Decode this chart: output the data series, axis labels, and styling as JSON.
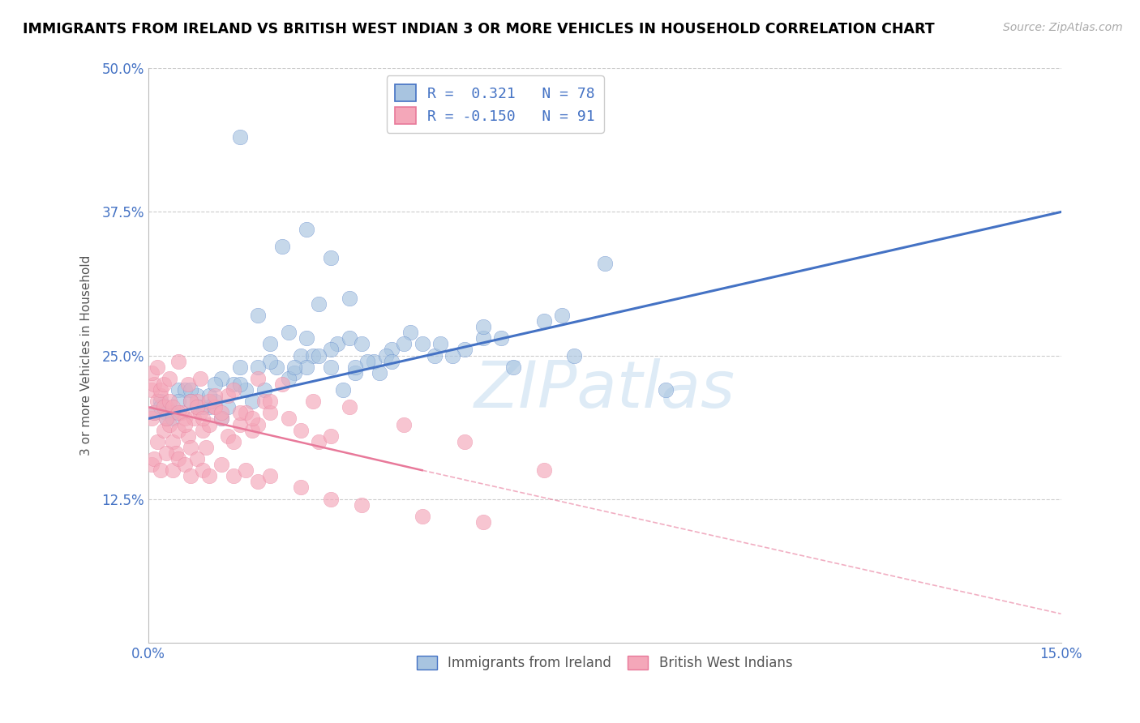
{
  "title": "IMMIGRANTS FROM IRELAND VS BRITISH WEST INDIAN 3 OR MORE VEHICLES IN HOUSEHOLD CORRELATION CHART",
  "source": "Source: ZipAtlas.com",
  "xlabel_blue": "Immigrants from Ireland",
  "xlabel_pink": "British West Indians",
  "ylabel": "3 or more Vehicles in Household",
  "xlim": [
    0.0,
    15.0
  ],
  "ylim": [
    0.0,
    50.0
  ],
  "yticks": [
    0.0,
    12.5,
    25.0,
    37.5,
    50.0
  ],
  "ytick_labels": [
    "",
    "12.5%",
    "25.0%",
    "37.5%",
    "50.0%"
  ],
  "blue_R": 0.321,
  "blue_N": 78,
  "pink_R": -0.15,
  "pink_N": 91,
  "blue_color": "#a8c4e0",
  "pink_color": "#f4a7b9",
  "blue_line_color": "#4472c4",
  "pink_line_color": "#e8799a",
  "watermark": "ZIPatlas",
  "blue_line_x0": 0.0,
  "blue_line_y0": 19.5,
  "blue_line_x1": 15.0,
  "blue_line_y1": 37.5,
  "pink_solid_x0": 0.0,
  "pink_solid_y0": 20.5,
  "pink_solid_x1": 4.5,
  "pink_solid_y1": 15.0,
  "pink_dash_x0": 4.5,
  "pink_dash_y0": 15.0,
  "pink_dash_x1": 15.0,
  "pink_dash_y1": 2.5,
  "blue_scatter_x": [
    1.5,
    2.2,
    2.6,
    3.0,
    3.3,
    0.3,
    0.5,
    0.8,
    1.0,
    1.2,
    1.5,
    1.8,
    2.0,
    2.3,
    2.5,
    2.8,
    3.1,
    3.4,
    3.7,
    4.0,
    4.3,
    4.7,
    5.5,
    7.5,
    0.2,
    0.4,
    0.6,
    0.9,
    1.1,
    1.4,
    1.7,
    2.1,
    2.4,
    2.7,
    3.0,
    3.2,
    3.6,
    3.9,
    4.5,
    5.2,
    6.0,
    0.1,
    0.3,
    0.7,
    1.0,
    1.3,
    1.6,
    2.0,
    2.3,
    2.6,
    3.0,
    3.4,
    3.8,
    4.2,
    5.0,
    5.8,
    6.5,
    7.0,
    8.5,
    0.2,
    0.5,
    0.8,
    1.2,
    1.5,
    1.9,
    2.4,
    2.8,
    3.3,
    4.0,
    4.8,
    5.5,
    6.8,
    0.4,
    0.7,
    1.1,
    1.8,
    2.6,
    3.5
  ],
  "blue_scatter_y": [
    44.0,
    34.5,
    36.0,
    33.5,
    30.0,
    20.0,
    22.0,
    21.5,
    20.5,
    19.5,
    24.0,
    28.5,
    26.0,
    27.0,
    25.0,
    29.5,
    26.0,
    23.5,
    24.5,
    25.5,
    27.0,
    25.0,
    26.5,
    33.0,
    21.0,
    20.0,
    22.0,
    20.5,
    21.0,
    22.5,
    21.0,
    24.0,
    23.5,
    25.0,
    24.0,
    22.0,
    24.5,
    25.0,
    26.0,
    25.5,
    24.0,
    20.0,
    19.5,
    22.0,
    21.5,
    20.5,
    22.0,
    24.5,
    23.0,
    24.0,
    25.5,
    24.0,
    23.5,
    26.0,
    25.0,
    26.5,
    28.0,
    25.0,
    22.0,
    20.5,
    21.0,
    20.5,
    23.0,
    22.5,
    22.0,
    24.0,
    25.0,
    26.5,
    24.5,
    26.0,
    27.5,
    28.5,
    19.5,
    21.0,
    22.5,
    24.0,
    26.5,
    26.0
  ],
  "pink_scatter_x": [
    0.05,
    0.1,
    0.15,
    0.2,
    0.25,
    0.3,
    0.35,
    0.4,
    0.45,
    0.5,
    0.55,
    0.6,
    0.65,
    0.7,
    0.75,
    0.8,
    0.85,
    0.9,
    0.95,
    1.0,
    1.1,
    1.2,
    1.3,
    1.4,
    1.5,
    1.6,
    1.7,
    1.8,
    1.9,
    2.0,
    0.05,
    0.1,
    0.15,
    0.2,
    0.25,
    0.3,
    0.35,
    0.4,
    0.5,
    0.6,
    0.7,
    0.8,
    0.9,
    1.0,
    1.1,
    1.2,
    1.3,
    1.5,
    1.7,
    2.0,
    2.3,
    2.5,
    2.8,
    3.0,
    0.05,
    0.1,
    0.2,
    0.3,
    0.4,
    0.5,
    0.6,
    0.7,
    0.8,
    0.9,
    1.0,
    1.2,
    1.4,
    1.6,
    1.8,
    2.0,
    2.5,
    3.0,
    3.5,
    4.5,
    5.5,
    0.05,
    0.15,
    0.25,
    0.35,
    0.5,
    0.65,
    0.85,
    1.1,
    1.4,
    1.8,
    2.2,
    2.7,
    3.3,
    4.2,
    5.2,
    6.5
  ],
  "pink_scatter_y": [
    19.5,
    20.0,
    17.5,
    21.5,
    18.5,
    20.5,
    19.0,
    17.5,
    16.5,
    18.5,
    20.0,
    19.5,
    18.0,
    17.0,
    19.5,
    21.0,
    20.0,
    18.5,
    17.0,
    19.0,
    20.5,
    19.5,
    18.0,
    17.5,
    19.0,
    20.0,
    18.5,
    19.0,
    21.0,
    20.0,
    22.0,
    22.5,
    21.0,
    22.0,
    20.5,
    19.5,
    21.0,
    20.5,
    20.0,
    19.0,
    21.0,
    20.5,
    19.5,
    21.0,
    20.5,
    20.0,
    21.5,
    20.0,
    19.5,
    21.0,
    19.5,
    18.5,
    17.5,
    18.0,
    15.5,
    16.0,
    15.0,
    16.5,
    15.0,
    16.0,
    15.5,
    14.5,
    16.0,
    15.0,
    14.5,
    15.5,
    14.5,
    15.0,
    14.0,
    14.5,
    13.5,
    12.5,
    12.0,
    11.0,
    10.5,
    23.5,
    24.0,
    22.5,
    23.0,
    24.5,
    22.5,
    23.0,
    21.5,
    22.0,
    23.0,
    22.5,
    21.0,
    20.5,
    19.0,
    17.5,
    15.0
  ]
}
